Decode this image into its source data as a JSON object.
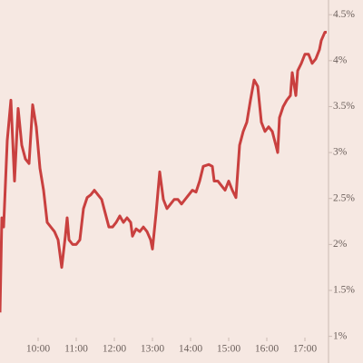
{
  "chart_data": {
    "type": "line",
    "x": [
      9.0,
      9.048,
      9.095,
      9.19,
      9.286,
      9.381,
      9.476,
      9.571,
      9.667,
      9.762,
      9.857,
      9.952,
      10.048,
      10.143,
      10.238,
      10.333,
      10.429,
      10.524,
      10.619,
      10.714,
      10.762,
      10.81,
      10.905,
      11.0,
      11.095,
      11.19,
      11.286,
      11.381,
      11.476,
      11.571,
      11.667,
      11.762,
      11.857,
      11.952,
      12.048,
      12.143,
      12.238,
      12.333,
      12.429,
      12.476,
      12.571,
      12.667,
      12.762,
      12.857,
      12.952,
      13.0,
      13.095,
      13.19,
      13.286,
      13.381,
      13.476,
      13.571,
      13.667,
      13.762,
      13.857,
      13.952,
      14.048,
      14.143,
      14.238,
      14.333,
      14.476,
      14.571,
      14.619,
      14.714,
      14.81,
      14.905,
      15.0,
      15.095,
      15.19,
      15.286,
      15.381,
      15.476,
      15.571,
      15.667,
      15.762,
      15.857,
      15.952,
      16.048,
      16.143,
      16.238,
      16.286,
      16.333,
      16.429,
      16.524,
      16.619,
      16.667,
      16.762,
      16.81,
      16.905,
      17.0,
      17.095,
      17.19,
      17.286,
      17.381,
      17.429,
      17.524,
      17.571
    ],
    "series": [
      {
        "color": "#c9403f",
        "values": [
          1.26,
          2.29,
          2.19,
          3.13,
          3.57,
          2.69,
          3.48,
          3.08,
          2.93,
          2.88,
          3.52,
          3.28,
          2.83,
          2.59,
          2.24,
          2.19,
          2.14,
          2.05,
          1.75,
          2.09,
          2.29,
          2.05,
          2.0,
          2.0,
          2.05,
          2.39,
          2.51,
          2.54,
          2.59,
          2.54,
          2.49,
          2.34,
          2.19,
          2.19,
          2.24,
          2.31,
          2.24,
          2.29,
          2.24,
          2.09,
          2.17,
          2.14,
          2.19,
          2.14,
          2.05,
          1.95,
          2.34,
          2.79,
          2.49,
          2.39,
          2.44,
          2.49,
          2.49,
          2.44,
          2.49,
          2.54,
          2.59,
          2.57,
          2.69,
          2.85,
          2.87,
          2.85,
          2.69,
          2.69,
          2.64,
          2.59,
          2.69,
          2.59,
          2.51,
          3.08,
          3.23,
          3.33,
          3.57,
          3.79,
          3.72,
          3.33,
          3.23,
          3.28,
          3.23,
          3.08,
          3.0,
          3.38,
          3.5,
          3.57,
          3.62,
          3.87,
          3.62,
          3.89,
          3.97,
          4.07,
          4.07,
          3.97,
          4.02,
          4.12,
          4.22,
          4.31,
          4.31
        ]
      }
    ],
    "xlim": [
      9.0,
      17.619
    ],
    "xticks": [
      {
        "value": 10,
        "label": "10:00"
      },
      {
        "value": 11,
        "label": "11:00"
      },
      {
        "value": 12,
        "label": "12:00"
      },
      {
        "value": 13,
        "label": "13:00"
      },
      {
        "value": 14,
        "label": "14:00"
      },
      {
        "value": 15,
        "label": "15:00"
      },
      {
        "value": 16,
        "label": "16:00"
      },
      {
        "value": 17,
        "label": "17:00"
      }
    ],
    "ylim": [
      0.71,
      4.66
    ],
    "yticks": [
      {
        "value": 1,
        "label": "1%"
      },
      {
        "value": 1.5,
        "label": "1.5%"
      },
      {
        "value": 2,
        "label": "2%"
      },
      {
        "value": 2.5,
        "label": "2.5%"
      },
      {
        "value": 3,
        "label": "3%"
      },
      {
        "value": 3.5,
        "label": "3.5%"
      },
      {
        "value": 4,
        "label": "4%"
      },
      {
        "value": 4.5,
        "label": "4.5%"
      }
    ]
  }
}
